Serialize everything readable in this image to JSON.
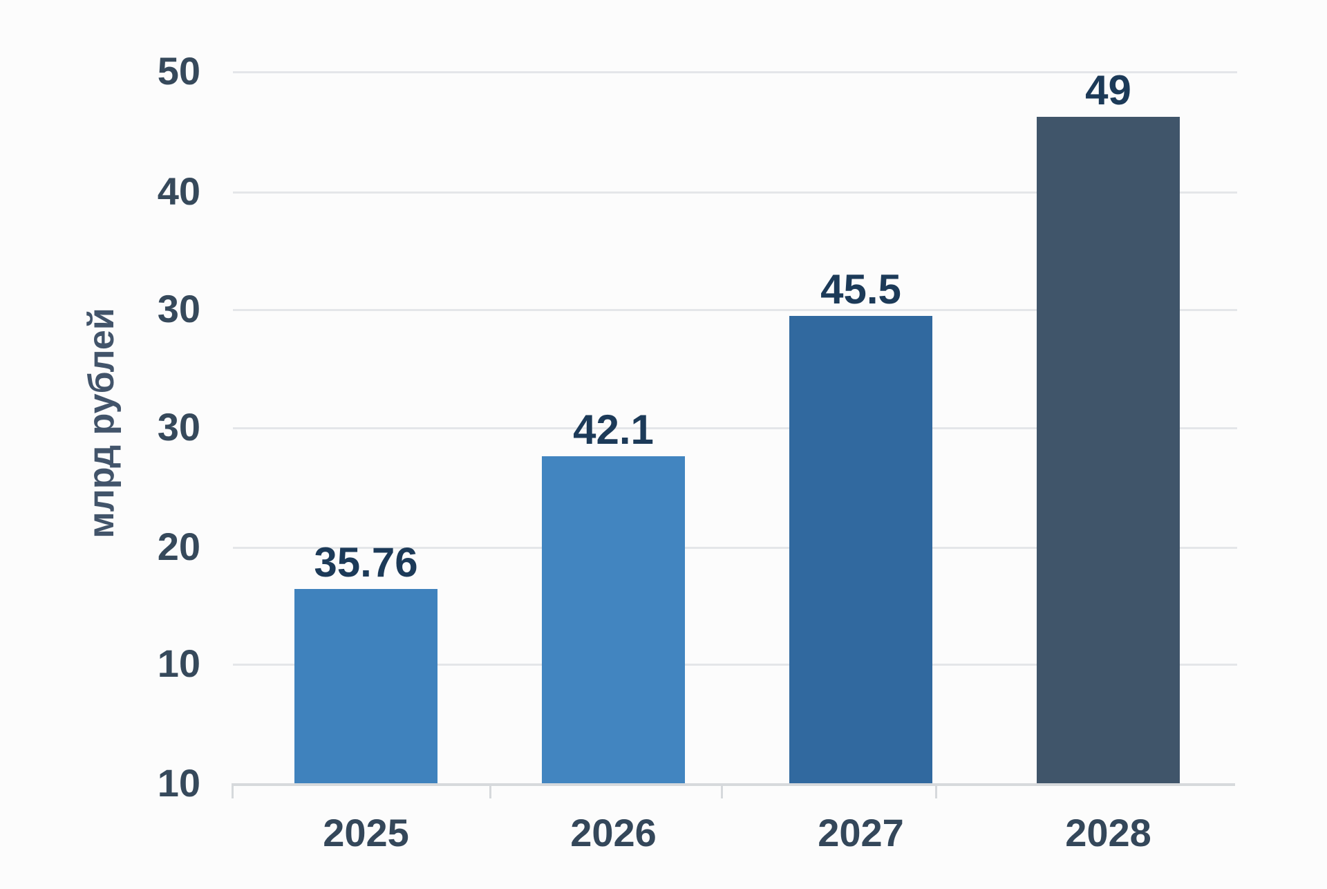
{
  "chart_data": {
    "type": "bar",
    "title": "",
    "xlabel": "",
    "ylabel": "млрд рублей",
    "categories": [
      "2025",
      "2026",
      "2027",
      "2028"
    ],
    "values": [
      35.76,
      42.1,
      45.5,
      49
    ],
    "value_labels": [
      "35.76",
      "42.1",
      "45.5",
      "49"
    ],
    "bar_colors": [
      "#3f82bd",
      "#4285c0",
      "#31699f",
      "#40556a"
    ],
    "ytick_labels": [
      "50",
      "40",
      "30",
      "30",
      "20",
      "10",
      "10"
    ],
    "grid": true,
    "legend": "none",
    "colors": {
      "background": "#fcfcfc",
      "grid_color": "#e4e6e9",
      "axis_color": "#d6d9dc",
      "tick_text_color": "#36495b",
      "value_text_color": "#1c3a58",
      "axis_title_color": "#42546a"
    }
  }
}
